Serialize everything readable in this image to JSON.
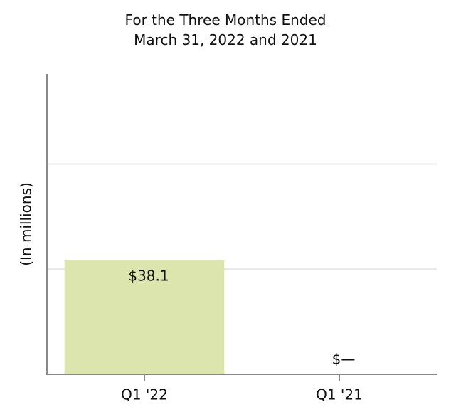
{
  "chart_data": {
    "type": "bar",
    "title": "For the Three Months Ended\nMarch 31, 2022 and 2021",
    "y_label": "(In millions)",
    "categories": [
      "Q1 '22",
      "Q1 '21"
    ],
    "values": [
      38.1,
      0
    ],
    "value_labels": [
      "$38.1",
      "$—"
    ],
    "color": "#dce5ad",
    "ylim": [
      0,
      100
    ],
    "yticks": [
      35,
      70
    ],
    "grid": true
  }
}
